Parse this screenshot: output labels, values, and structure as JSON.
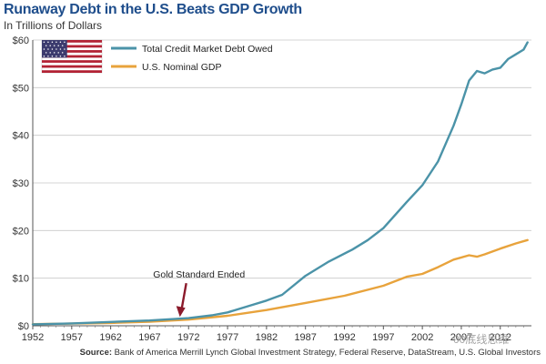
{
  "chart_data": {
    "type": "line",
    "title": "Runaway Debt in the U.S. Beats GDP Growth",
    "subtitle": "In Trillions of Dollars",
    "xlabel": "",
    "ylabel": "",
    "xlim": [
      1952,
      2016
    ],
    "ylim": [
      0,
      60
    ],
    "x_ticks": [
      "1952",
      "1957",
      "1962",
      "1967",
      "1972",
      "1977",
      "1982",
      "1987",
      "1992",
      "1997",
      "2002",
      "2007",
      "2012"
    ],
    "y_ticks": [
      "$0",
      "$10",
      "$20",
      "$30",
      "$40",
      "$50",
      "$60"
    ],
    "series": [
      {
        "name": "Total Credit Market Debt Owed",
        "color": "#4b93a8",
        "x": [
          1952,
          1957,
          1962,
          1967,
          1972,
          1975,
          1977,
          1980,
          1982,
          1984,
          1987,
          1990,
          1993,
          1995,
          1997,
          2000,
          2002,
          2004,
          2006,
          2007,
          2008,
          2009,
          2010,
          2011,
          2012,
          2013,
          2014,
          2015,
          2015.5
        ],
        "values": [
          0.3,
          0.5,
          0.8,
          1.1,
          1.6,
          2.2,
          2.8,
          4.3,
          5.3,
          6.5,
          10.5,
          13.5,
          16,
          18,
          20.5,
          26,
          29.5,
          34.5,
          42,
          46.5,
          51.5,
          53.5,
          53,
          53.8,
          54.2,
          56,
          57,
          58,
          59.5
        ]
      },
      {
        "name": "U.S. Nominal GDP",
        "color": "#e8a33c",
        "x": [
          1952,
          1957,
          1962,
          1967,
          1972,
          1977,
          1982,
          1987,
          1992,
          1997,
          2000,
          2002,
          2004,
          2006,
          2008,
          2009,
          2010,
          2012,
          2014,
          2015.5
        ],
        "values": [
          0.35,
          0.45,
          0.6,
          0.85,
          1.3,
          2.1,
          3.3,
          4.8,
          6.3,
          8.4,
          10.3,
          10.9,
          12.3,
          13.9,
          14.8,
          14.5,
          15,
          16.2,
          17.3,
          18
        ]
      }
    ],
    "annotation": {
      "text": "Gold Standard Ended",
      "x": 1971,
      "y": 1.3
    }
  },
  "source": {
    "label": "Source:",
    "text": "Bank of America Merrill Lynch Global Investment Strategy, Federal Reserve, DataStream, U.S. Global Investors"
  },
  "watermark": "00底线思维",
  "colors": {
    "title": "#1f4e8c",
    "debt": "#4b93a8",
    "gdp": "#e8a33c",
    "arrow": "#8b1a2b",
    "flag_red": "#b22234",
    "flag_blue": "#3c3b6e"
  }
}
